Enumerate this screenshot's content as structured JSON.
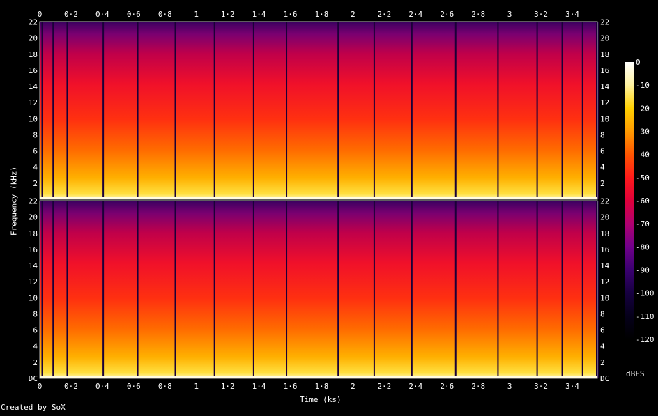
{
  "chart_data": {
    "type": "heatmap",
    "title": "",
    "xlabel": "Time (ks)",
    "ylabel": "Frequency (kHz)",
    "colorbar_label": "dBFS",
    "credit": "Created by SoX",
    "channels": 2,
    "x_ticks": [
      "0",
      "0·2",
      "0·4",
      "0·6",
      "0·8",
      "1",
      "1·2",
      "1·4",
      "1·6",
      "1·8",
      "2",
      "2·2",
      "2·4",
      "2·6",
      "2·8",
      "3",
      "3·2",
      "3·4"
    ],
    "x_tick_values": [
      0,
      0.2,
      0.4,
      0.6,
      0.8,
      1.0,
      1.2,
      1.4,
      1.6,
      1.8,
      2.0,
      2.2,
      2.4,
      2.6,
      2.8,
      3.0,
      3.2,
      3.4
    ],
    "xlim": [
      0,
      3.56
    ],
    "y_ticks_top": [
      "22",
      "20",
      "18",
      "16",
      "14",
      "12",
      "10",
      "8",
      "6",
      "4",
      "2"
    ],
    "y_ticks_bottom": [
      "22",
      "20",
      "18",
      "16",
      "14",
      "12",
      "10",
      "8",
      "6",
      "4",
      "2",
      "DC"
    ],
    "y_tick_values": [
      22,
      20,
      18,
      16,
      14,
      12,
      10,
      8,
      6,
      4,
      2,
      0
    ],
    "ylim": [
      0,
      22.05
    ],
    "colorbar_ticks": [
      "0",
      "-10",
      "-20",
      "-30",
      "-40",
      "-50",
      "-60",
      "-70",
      "-80",
      "-90",
      "-100",
      "-110",
      "-120"
    ],
    "colorbar_values": [
      0,
      -10,
      -20,
      -30,
      -40,
      -50,
      -60,
      -70,
      -80,
      -90,
      -100,
      -110,
      -120
    ],
    "zlim": [
      -120,
      0
    ],
    "colormap": [
      "#ffffff",
      "#fff3a0",
      "#ffd000",
      "#ff9a00",
      "#ff5500",
      "#ff1a1a",
      "#e0003a",
      "#b00070",
      "#70008a",
      "#3a0070",
      "#160040",
      "#05001a",
      "#000000"
    ],
    "segment_boundaries_ks": [
      0.02,
      0.09,
      0.18,
      0.41,
      0.63,
      0.87,
      1.12,
      1.37,
      1.58,
      1.91,
      2.14,
      2.38,
      2.66,
      2.93,
      3.18,
      3.34,
      3.47
    ]
  }
}
